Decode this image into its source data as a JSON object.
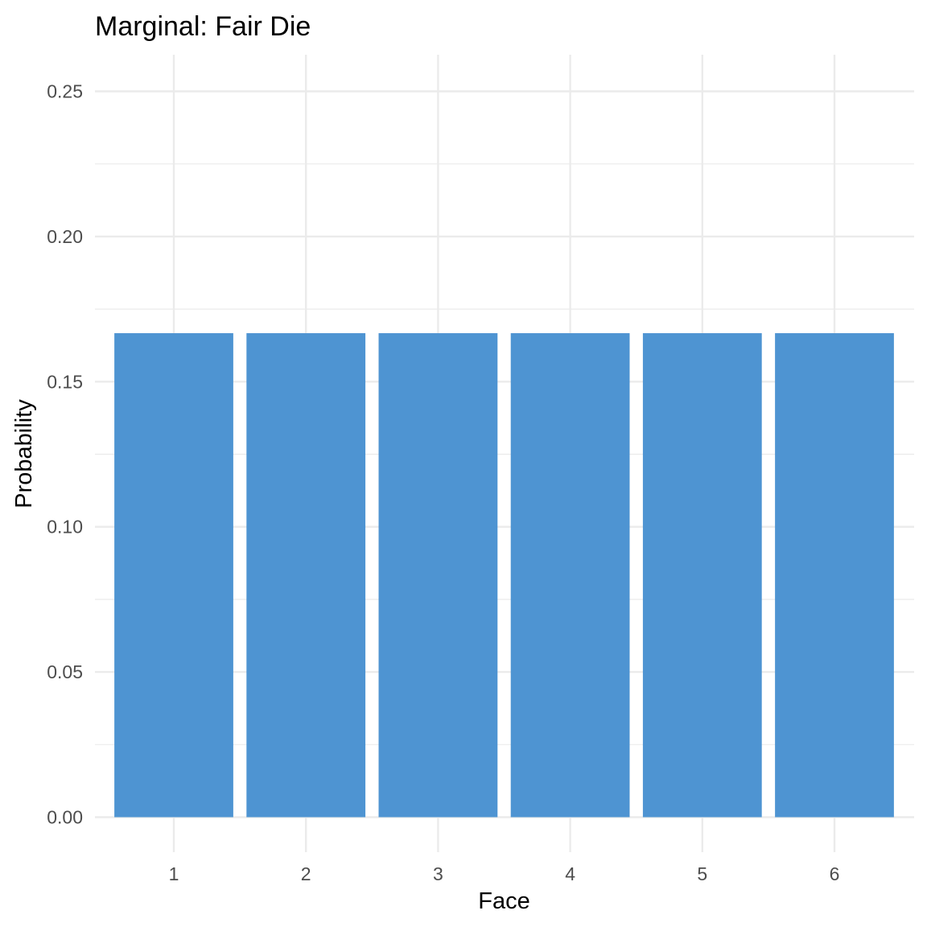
{
  "chart_data": {
    "type": "bar",
    "title": "Marginal: Fair Die",
    "xlabel": "Face",
    "ylabel": "Probability",
    "categories": [
      "1",
      "2",
      "3",
      "4",
      "5",
      "6"
    ],
    "values": [
      0.1667,
      0.1667,
      0.1667,
      0.1667,
      0.1667,
      0.1667
    ],
    "ylim": [
      0,
      0.25
    ],
    "yticks": [
      0.0,
      0.05,
      0.1,
      0.15,
      0.2,
      0.25
    ],
    "ytick_labels": [
      "0.00",
      "0.05",
      "0.10",
      "0.15",
      "0.20",
      "0.25"
    ],
    "grid": true,
    "legend": "none",
    "bar_color": "#4e94d2"
  }
}
